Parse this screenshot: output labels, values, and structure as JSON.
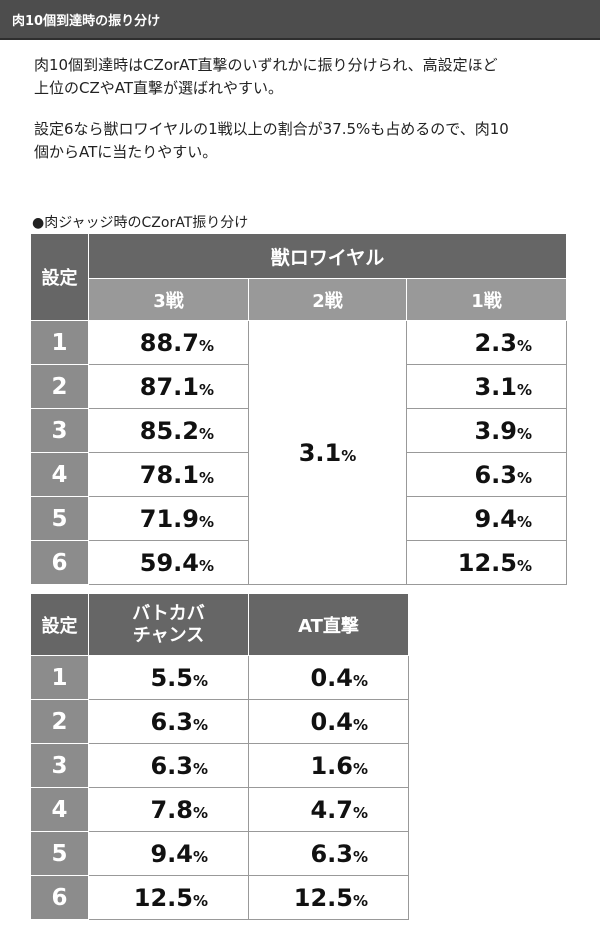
{
  "header": {
    "title": "肉10個到達時の振り分け"
  },
  "intro": {
    "p1_line1": "肉10個到達時はCZorAT直撃のいずれかに振り分けられ、高設定ほど",
    "p1_line2": "上位のCZやAT直撃が選ばれやすい。",
    "p2_line1": "設定6なら獣ロワイヤルの1戦以上の割合が37.5%も占めるので、肉10",
    "p2_line2": "個からATに当たりやすい。"
  },
  "table1": {
    "caption": "●肉ジャッジ時のCZorAT振り分け",
    "setting_header": "設定",
    "group_header": "獣ロワイヤル",
    "columns": [
      "3戦",
      "2戦",
      "1戦"
    ],
    "merged_2sen": "3.1",
    "rows": [
      {
        "setting": "1",
        "sen3": "88.7",
        "sen1": "2.3"
      },
      {
        "setting": "2",
        "sen3": "87.1",
        "sen1": "3.1"
      },
      {
        "setting": "3",
        "sen3": "85.2",
        "sen1": "3.9"
      },
      {
        "setting": "4",
        "sen3": "78.1",
        "sen1": "6.3"
      },
      {
        "setting": "5",
        "sen3": "71.9",
        "sen1": "9.4"
      },
      {
        "setting": "6",
        "sen3": "59.4",
        "sen1": "12.5"
      }
    ]
  },
  "table2": {
    "setting_header": "設定",
    "col1_line1": "バトカバ",
    "col1_line2": "チャンス",
    "col2": "AT直撃",
    "rows": [
      {
        "setting": "1",
        "battle": "5.5",
        "at": "0.4"
      },
      {
        "setting": "2",
        "battle": "6.3",
        "at": "0.4"
      },
      {
        "setting": "3",
        "battle": "6.3",
        "at": "1.6"
      },
      {
        "setting": "4",
        "battle": "7.8",
        "at": "4.7"
      },
      {
        "setting": "5",
        "battle": "9.4",
        "at": "6.3"
      },
      {
        "setting": "6",
        "battle": "12.5",
        "at": "12.5"
      }
    ]
  },
  "units": {
    "percent": "%"
  }
}
